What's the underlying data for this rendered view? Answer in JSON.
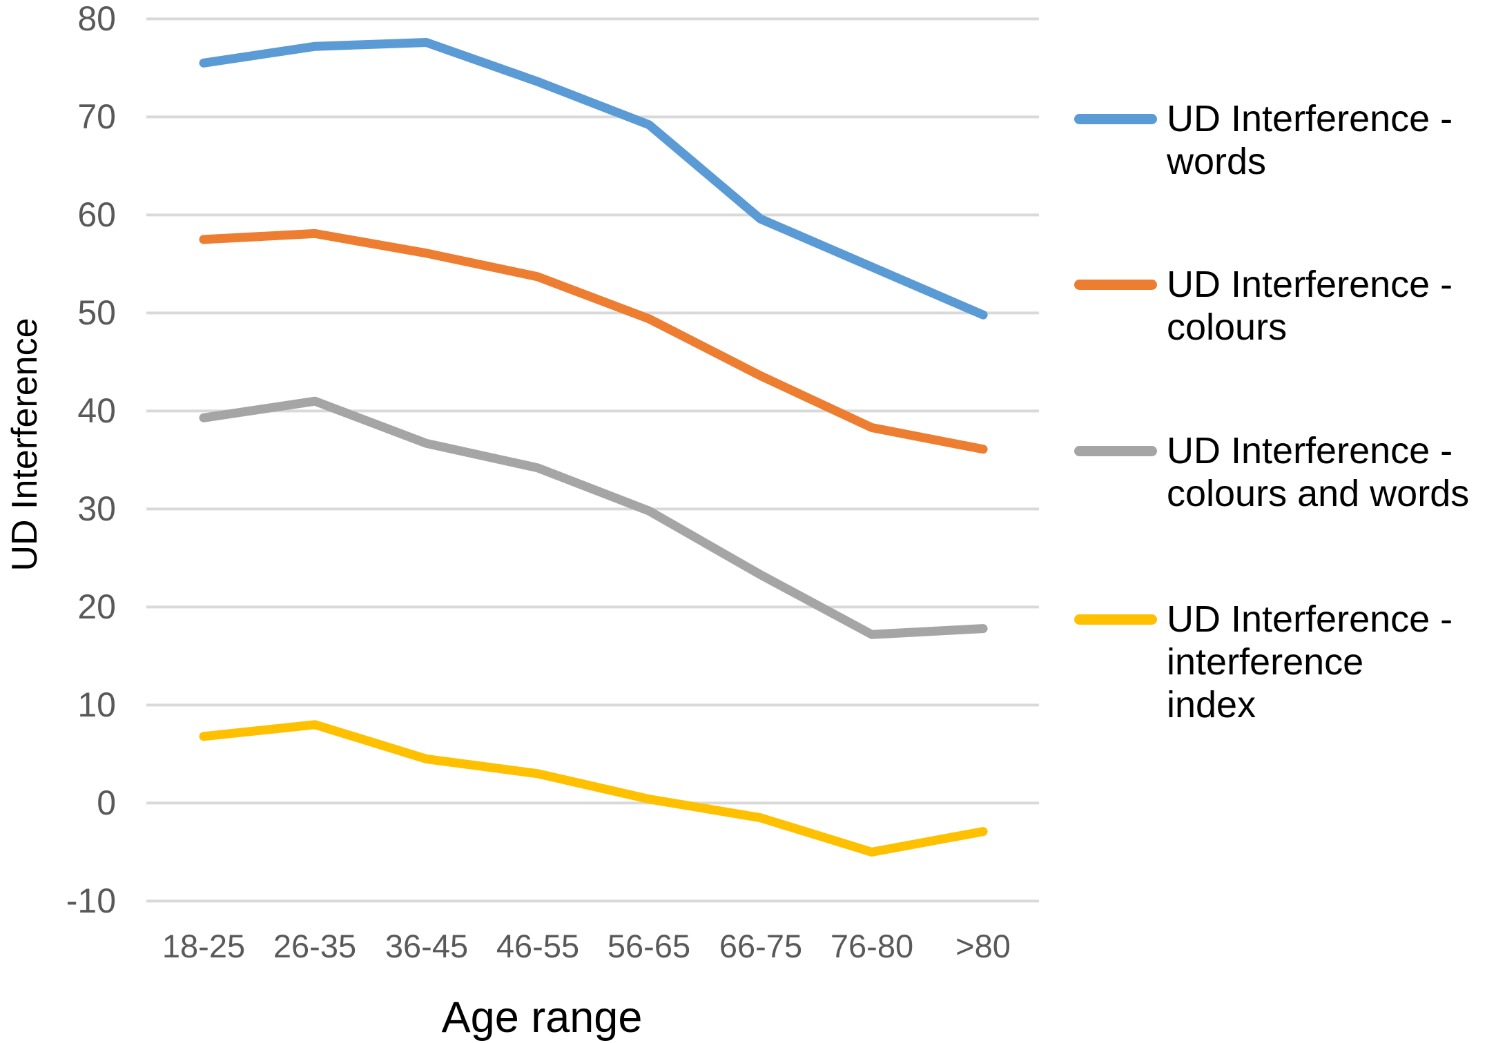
{
  "chart_data": {
    "type": "line",
    "title": "",
    "xlabel": "Age range",
    "ylabel": "UD Interference",
    "categories": [
      "18-25",
      "26-35",
      "36-45",
      "46-55",
      "56-65",
      "66-75",
      "76-80",
      ">80"
    ],
    "series": [
      {
        "name": "UD Interference - words",
        "color": "#5B9BD5",
        "values": [
          75.5,
          77.2,
          77.6,
          73.6,
          69.2,
          59.6,
          54.7,
          49.8
        ]
      },
      {
        "name": "UD Interference - colours",
        "color": "#ED7D31",
        "values": [
          57.5,
          58.1,
          56.1,
          53.7,
          49.4,
          43.6,
          38.3,
          36.1
        ]
      },
      {
        "name": "UD Interference - colours and words",
        "color": "#A5A5A5",
        "values": [
          39.3,
          41.0,
          36.7,
          34.2,
          29.8,
          23.3,
          17.2,
          17.8
        ]
      },
      {
        "name": "UD Interference - interference index",
        "color": "#FFC000",
        "values": [
          6.8,
          8.0,
          4.5,
          3.0,
          0.4,
          -1.5,
          -5.0,
          -2.9
        ]
      }
    ],
    "ylim": [
      -10,
      80
    ],
    "grid": "horizontal-only",
    "legend_position": "right"
  },
  "axes": {
    "y_title": "UD Interference",
    "x_title": "Age range",
    "y_tick_values": [
      80,
      70,
      60,
      50,
      40,
      30,
      20,
      10,
      0,
      -10
    ],
    "y_tick_labels": [
      "80",
      "70",
      "60",
      "50",
      "40",
      "30",
      "20",
      "10",
      "0",
      "-10"
    ],
    "x_tick_labels": [
      "18-25",
      "26-35",
      "36-45",
      "46-55",
      "56-65",
      "66-75",
      "76-80",
      ">80"
    ]
  },
  "legend": {
    "entries": [
      {
        "name": "UD Interference - words",
        "color": "#5B9BD5",
        "lines": [
          "UD Interference -",
          "words"
        ]
      },
      {
        "name": "UD Interference - colours",
        "color": "#ED7D31",
        "lines": [
          "UD Interference -",
          "colours"
        ]
      },
      {
        "name": "UD Interference - colours and words",
        "color": "#A5A5A5",
        "lines": [
          "UD Interference -",
          "colours and words"
        ]
      },
      {
        "name": "UD Interference - interference index",
        "color": "#FFC000",
        "lines": [
          "UD Interference -",
          "interference",
          "index"
        ]
      }
    ]
  },
  "colors": {
    "gridline": "#D9D9D9",
    "tick_label": "#595959",
    "text": "#000000",
    "background": "#FFFFFF"
  }
}
